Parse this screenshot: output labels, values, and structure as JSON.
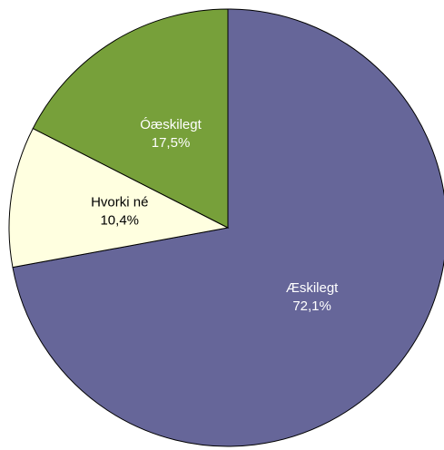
{
  "chart_data": {
    "type": "pie",
    "categories": [
      "Æskilegt",
      "Hvorki né",
      "Óæskilegt"
    ],
    "values": [
      72.1,
      10.4,
      17.5
    ],
    "value_labels": [
      "72,1%",
      "10,4%",
      "17,5%"
    ],
    "colors": [
      "#666699",
      "#ffffe0",
      "#77a03a"
    ],
    "label_colors": [
      "#ffffff",
      "#000000",
      "#ffffff"
    ]
  }
}
